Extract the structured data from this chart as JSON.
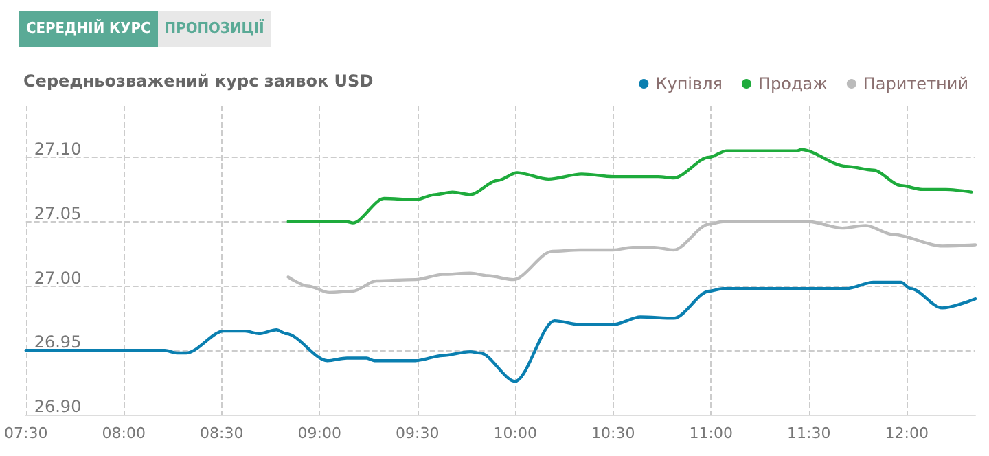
{
  "chart_data": {
    "type": "line",
    "title": "Середньозважений курс заявок USD",
    "annotations": [
      "СЕРЕДНІЙ КУРС",
      "ПРОПОЗИЦІЇ"
    ],
    "xlim": [
      7.5,
      12.35
    ],
    "xticks": [
      {
        "value": 7.5,
        "label": "07:30"
      },
      {
        "value": 8,
        "label": "08:00"
      },
      {
        "value": 8.5,
        "label": "08:30"
      },
      {
        "value": 9,
        "label": "09:00"
      },
      {
        "value": 9.5,
        "label": "09:30"
      },
      {
        "value": 10,
        "label": "10:00"
      },
      {
        "value": 10.5,
        "label": "10:30"
      },
      {
        "value": 11,
        "label": "11:00"
      },
      {
        "value": 11.5,
        "label": "11:30"
      },
      {
        "value": 12,
        "label": "12:00"
      }
    ],
    "ylim": [
      26.9,
      27.14
    ],
    "yticks": [
      {
        "value": 26.9,
        "label": "26.90"
      },
      {
        "value": 26.95,
        "label": "26.95"
      },
      {
        "value": 27,
        "label": "27.00"
      },
      {
        "value": 27.05,
        "label": "27.05"
      },
      {
        "value": 27.1,
        "label": "27.10"
      }
    ],
    "grid": true,
    "legend": "top right",
    "marker": "none",
    "line_style": "solid",
    "series": [
      {
        "name": "Купівля",
        "color": "#0a7fb0",
        "x": [
          7.5,
          8.21,
          8.27,
          8.32,
          8.51,
          8.62,
          8.69,
          8.78,
          8.83,
          9.04,
          9.14,
          9.24,
          9.28,
          9.49,
          9.63,
          9.77,
          9.82,
          10.0,
          10.2,
          10.33,
          10.5,
          10.64,
          10.81,
          10.99,
          11.06,
          11.69,
          11.83,
          11.97,
          12.02,
          12.18,
          12.35
        ],
        "values": [
          26.95,
          26.95,
          26.948,
          26.948,
          26.965,
          26.965,
          26.963,
          26.966,
          26.963,
          26.942,
          26.944,
          26.944,
          26.942,
          26.942,
          26.946,
          26.949,
          26.948,
          26.926,
          26.973,
          26.97,
          26.97,
          26.976,
          26.975,
          26.996,
          26.998,
          26.998,
          27.003,
          27.003,
          26.998,
          26.983,
          26.99
        ]
      },
      {
        "name": "Продаж",
        "color": "#1eab3c",
        "x": [
          8.84,
          9.14,
          9.17,
          9.33,
          9.49,
          9.59,
          9.68,
          9.77,
          9.91,
          10.01,
          10.17,
          10.34,
          10.5,
          10.73,
          10.81,
          10.99,
          11.08,
          11.44,
          11.46,
          11.69,
          11.83,
          11.97,
          12.08,
          12.2,
          12.33
        ],
        "values": [
          27.05,
          27.05,
          27.049,
          27.068,
          27.067,
          27.071,
          27.073,
          27.071,
          27.082,
          27.088,
          27.083,
          27.087,
          27.085,
          27.085,
          27.084,
          27.1,
          27.105,
          27.105,
          27.106,
          27.093,
          27.09,
          27.078,
          27.075,
          27.075,
          27.073
        ]
      },
      {
        "name": "Паритетний",
        "color": "#bbbbbb",
        "x": [
          8.84,
          8.94,
          9.05,
          9.17,
          9.29,
          9.49,
          9.63,
          9.77,
          9.86,
          9.99,
          10.19,
          10.33,
          10.5,
          10.6,
          10.71,
          10.81,
          10.99,
          11.06,
          11.5,
          11.67,
          11.79,
          11.93,
          12.18,
          12.35
        ],
        "values": [
          27.007,
          27.0,
          26.995,
          26.996,
          27.004,
          27.005,
          27.009,
          27.01,
          27.008,
          27.005,
          27.027,
          27.028,
          27.028,
          27.03,
          27.03,
          27.028,
          27.048,
          27.05,
          27.05,
          27.045,
          27.047,
          27.04,
          27.031,
          27.032
        ]
      }
    ]
  }
}
